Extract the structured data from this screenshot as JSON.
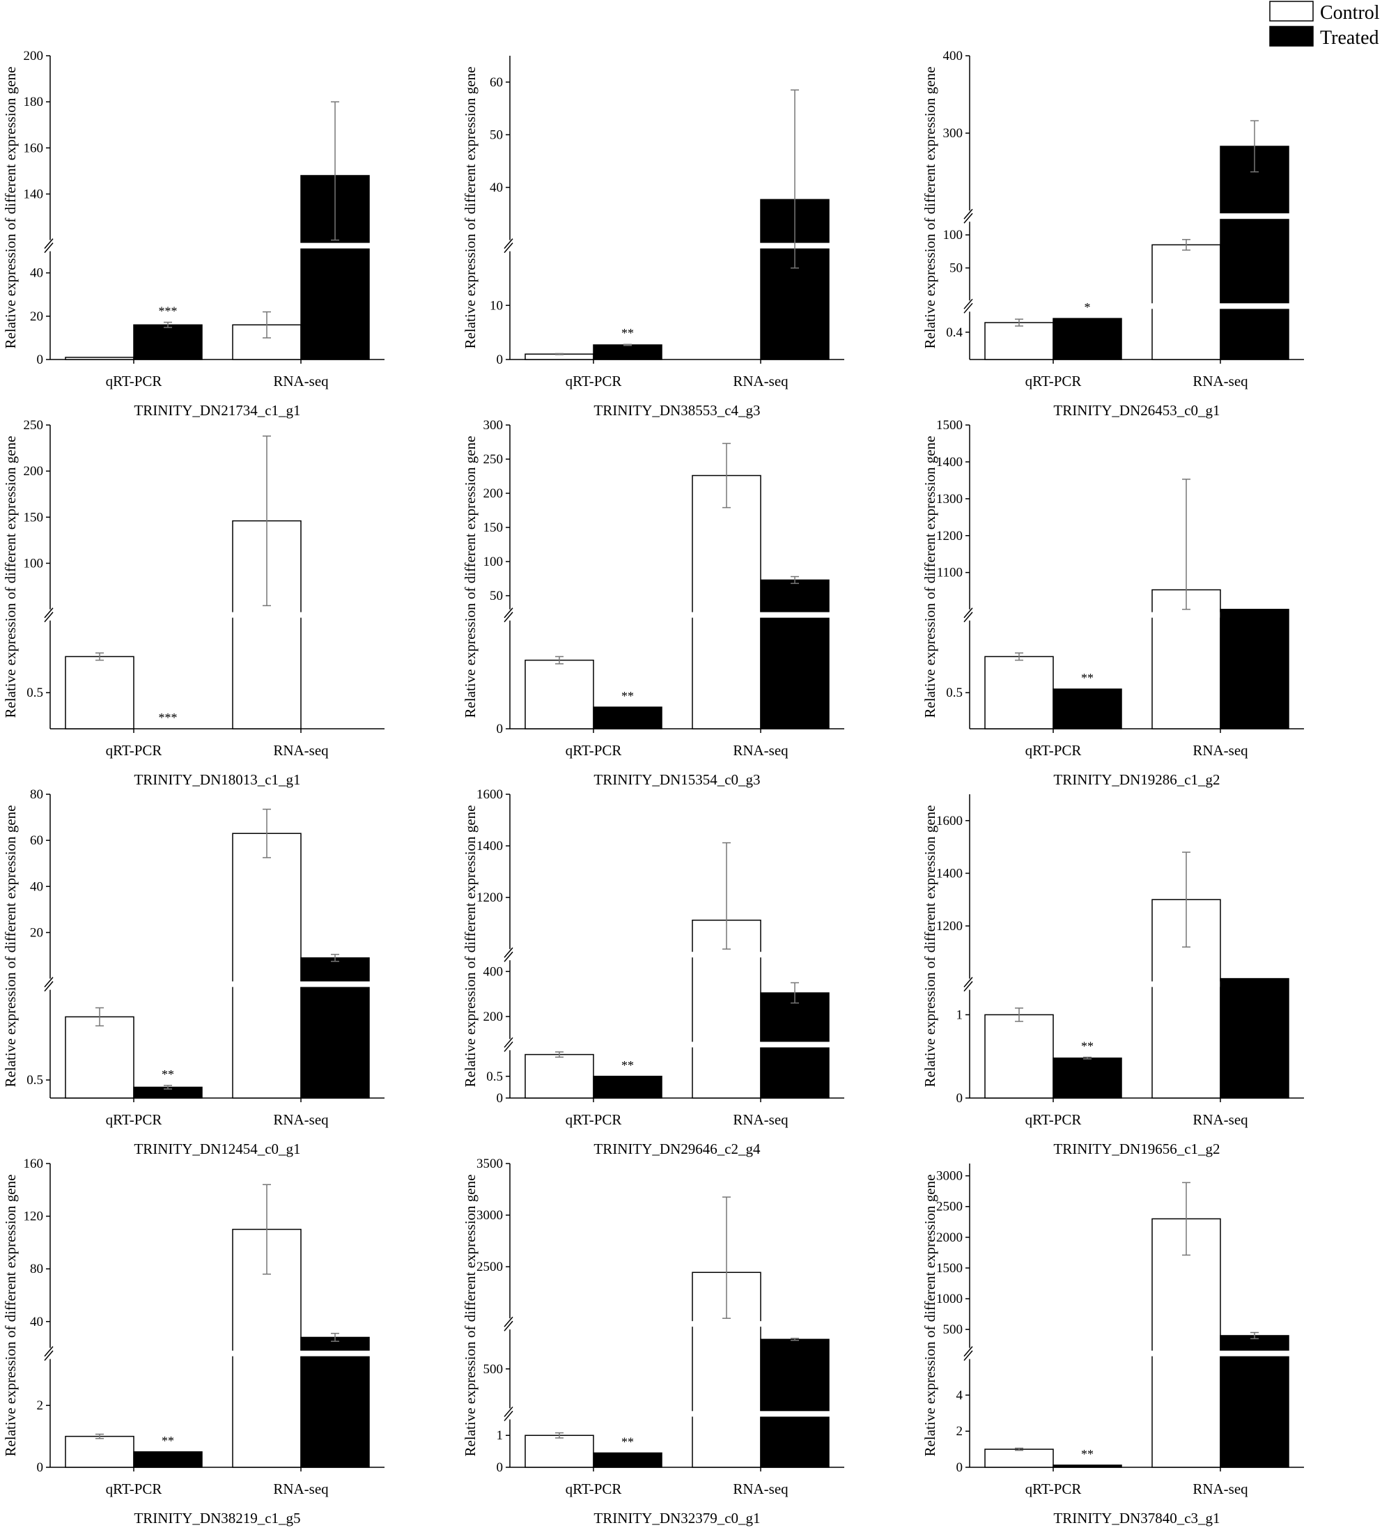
{
  "legend": {
    "control": "Control",
    "treated": "Treated"
  },
  "colors": {
    "control": "#ffffff",
    "treated": "#000000",
    "axis": "#000000",
    "error": "#777777"
  },
  "chart_data": [
    {
      "type": "bar",
      "title": "TRINITY_DN21734_c1_g1",
      "ylabel": "Relative expression of different expression gene",
      "categories": [
        "qRT-PCR",
        "RNA-seq"
      ],
      "segments": [
        {
          "lo": 0,
          "hi": 50,
          "ticks": [
            0,
            20,
            40
          ]
        },
        {
          "lo": 120,
          "hi": 200,
          "ticks": [
            140,
            160,
            180,
            200
          ]
        }
      ],
      "series": [
        {
          "name": "Control",
          "values": [
            1,
            16
          ],
          "errors": [
            0,
            6
          ]
        },
        {
          "name": "Treated",
          "values": [
            16,
            148
          ],
          "errors": [
            1.2,
            32
          ]
        }
      ],
      "significance": "***"
    },
    {
      "type": "bar",
      "title": "TRINITY_DN38553_c4_g3",
      "ylabel": "Relative expression of different expression gene",
      "categories": [
        "qRT-PCR",
        "RNA-seq"
      ],
      "segments": [
        {
          "lo": 0,
          "hi": 20,
          "ticks": [
            0,
            10
          ]
        },
        {
          "lo": 30,
          "hi": 65,
          "ticks": [
            40,
            50,
            60
          ]
        }
      ],
      "series": [
        {
          "name": "Control",
          "values": [
            1,
            0
          ],
          "errors": [
            0.1,
            0
          ]
        },
        {
          "name": "Treated",
          "values": [
            2.7,
            37.7
          ],
          "errors": [
            0.1,
            20.8
          ]
        }
      ],
      "significance": "**"
    },
    {
      "type": "bar",
      "title": "TRINITY_DN26453_c0_g1",
      "ylabel": "Relative expression of different expression gene",
      "categories": [
        "qRT-PCR",
        "RNA-seq"
      ],
      "segments": [
        {
          "lo": 0,
          "hi": 0.7,
          "ticks": [
            0.4
          ]
        },
        {
          "lo": 0.7,
          "hi": 120,
          "ticks": [
            50,
            100
          ]
        },
        {
          "lo": 200,
          "hi": 400,
          "ticks": [
            300,
            400
          ]
        }
      ],
      "series": [
        {
          "name": "Control",
          "values": [
            0.54,
            85
          ],
          "errors": [
            0.05,
            8
          ]
        },
        {
          "name": "Treated",
          "values": [
            0.6,
            283
          ],
          "errors": [
            0,
            33
          ]
        }
      ],
      "significance": "*"
    },
    {
      "type": "bar",
      "title": "TRINITY_DN18013_c1_g1",
      "ylabel": "Relative expression of different expression gene",
      "categories": [
        "qRT-PCR",
        "RNA-seq"
      ],
      "segments": [
        {
          "lo": 0.4,
          "hi": 0.7,
          "ticks": [
            0.5
          ]
        },
        {
          "lo": 50,
          "hi": 250,
          "ticks": [
            100,
            150,
            200,
            250
          ]
        }
      ],
      "series": [
        {
          "name": "Control",
          "values": [
            0.6,
            146
          ],
          "errors": [
            0.01,
            92
          ]
        },
        {
          "name": "Treated",
          "values": [
            0,
            0
          ],
          "errors": [
            0,
            0
          ]
        }
      ],
      "significance": "***"
    },
    {
      "type": "bar",
      "title": "TRINITY_DN15354_c0_g3",
      "ylabel": "Relative expression of different expression gene",
      "categories": [
        "qRT-PCR",
        "RNA-seq"
      ],
      "segments": [
        {
          "lo": 0,
          "hi": 3,
          "ticks": [
            0
          ]
        },
        {
          "lo": 30,
          "hi": 300,
          "ticks": [
            50,
            100,
            150,
            200,
            250,
            300
          ]
        }
      ],
      "series": [
        {
          "name": "Control",
          "values": [
            1.9,
            226
          ],
          "errors": [
            0.1,
            47
          ]
        },
        {
          "name": "Treated",
          "values": [
            0.6,
            73
          ],
          "errors": [
            0,
            5
          ]
        }
      ],
      "significance": "**"
    },
    {
      "type": "bar",
      "title": "TRINITY_DN19286_c1_g2",
      "ylabel": "Relative expression of different expression gene",
      "categories": [
        "qRT-PCR",
        "RNA-seq"
      ],
      "segments": [
        {
          "lo": 0.4,
          "hi": 0.7,
          "ticks": [
            0.5
          ]
        },
        {
          "lo": 1000,
          "hi": 1500,
          "ticks": [
            1100,
            1200,
            1300,
            1400,
            1500
          ]
        }
      ],
      "series": [
        {
          "name": "Control",
          "values": [
            0.6,
            1053
          ],
          "errors": [
            0.01,
            300
          ]
        },
        {
          "name": "Treated",
          "values": [
            0.51,
            1000
          ],
          "errors": [
            0,
            0
          ]
        }
      ],
      "significance": "**"
    },
    {
      "type": "bar",
      "title": "TRINITY_DN12454_c0_g1",
      "ylabel": "Relative expression of different expression gene",
      "categories": [
        "qRT-PCR",
        "RNA-seq"
      ],
      "segments": [
        {
          "lo": 0.4,
          "hi": 1.0,
          "ticks": [
            0.5
          ]
        },
        {
          "lo": 0,
          "hi": 80,
          "ticks": [
            20,
            40,
            60,
            80
          ]
        }
      ],
      "series": [
        {
          "name": "Control",
          "values": [
            0.85,
            63
          ],
          "errors": [
            0.05,
            10.5
          ]
        },
        {
          "name": "Treated",
          "values": [
            0.46,
            9
          ],
          "errors": [
            0.01,
            1.5
          ]
        }
      ],
      "significance": "**"
    },
    {
      "type": "bar",
      "title": "TRINITY_DN29646_c2_g4",
      "ylabel": "Relative expression of different expression gene",
      "categories": [
        "qRT-PCR",
        "RNA-seq"
      ],
      "segments": [
        {
          "lo": 0,
          "hi": 1.1,
          "ticks": [
            0,
            0.5
          ]
        },
        {
          "lo": 100,
          "hi": 450,
          "ticks": [
            200,
            400
          ]
        },
        {
          "lo": 1000,
          "hi": 1600,
          "ticks": [
            1200,
            1400,
            1600
          ]
        }
      ],
      "series": [
        {
          "name": "Control",
          "values": [
            1,
            1112
          ],
          "errors": [
            0.06,
            300
          ]
        },
        {
          "name": "Treated",
          "values": [
            0.5,
            305
          ],
          "errors": [
            0,
            45
          ]
        }
      ],
      "significance": "**"
    },
    {
      "type": "bar",
      "title": "TRINITY_DN19656_c1_g2",
      "ylabel": "Relative expression of different expression gene",
      "categories": [
        "qRT-PCR",
        "RNA-seq"
      ],
      "segments": [
        {
          "lo": 0,
          "hi": 1.3,
          "ticks": [
            0,
            1
          ]
        },
        {
          "lo": 1000,
          "hi": 1700,
          "ticks": [
            1200,
            1400,
            1600
          ]
        }
      ],
      "series": [
        {
          "name": "Control",
          "values": [
            1,
            1300
          ],
          "errors": [
            0.08,
            180
          ]
        },
        {
          "name": "Treated",
          "values": [
            0.48,
            1000
          ],
          "errors": [
            0.01,
            0
          ]
        }
      ],
      "significance": "**"
    },
    {
      "type": "bar",
      "title": "TRINITY_DN38219_c1_g5",
      "ylabel": "Relative expression of different expression gene",
      "categories": [
        "qRT-PCR",
        "RNA-seq"
      ],
      "segments": [
        {
          "lo": 0,
          "hi": 3.5,
          "ticks": [
            0,
            2
          ]
        },
        {
          "lo": 20,
          "hi": 160,
          "ticks": [
            40,
            80,
            120,
            160
          ]
        }
      ],
      "series": [
        {
          "name": "Control",
          "values": [
            1,
            110
          ],
          "errors": [
            0.07,
            34
          ]
        },
        {
          "name": "Treated",
          "values": [
            0.5,
            28
          ],
          "errors": [
            0,
            3
          ]
        }
      ],
      "significance": "**"
    },
    {
      "type": "bar",
      "title": "TRINITY_DN32379_c0_g1",
      "ylabel": "Relative expression of different expression gene",
      "categories": [
        "qRT-PCR",
        "RNA-seq"
      ],
      "segments": [
        {
          "lo": 0,
          "hi": 1.5,
          "ticks": [
            0,
            1
          ]
        },
        {
          "lo": 300,
          "hi": 700,
          "ticks": [
            500
          ]
        },
        {
          "lo": 2000,
          "hi": 3500,
          "ticks": [
            2500,
            3000,
            3500
          ]
        }
      ],
      "series": [
        {
          "name": "Control",
          "values": [
            1,
            2445
          ],
          "errors": [
            0.08,
            730
          ]
        },
        {
          "name": "Treated",
          "values": [
            0.45,
            650
          ],
          "errors": [
            0,
            5
          ]
        }
      ],
      "significance": "**"
    },
    {
      "type": "bar",
      "title": "TRINITY_DN37840_c3_g1",
      "ylabel": "Relative expression of different expression gene",
      "categories": [
        "qRT-PCR",
        "RNA-seq"
      ],
      "segments": [
        {
          "lo": 0,
          "hi": 6,
          "ticks": [
            0,
            2,
            4
          ]
        },
        {
          "lo": 200,
          "hi": 3200,
          "ticks": [
            500,
            1000,
            1500,
            2000,
            2500,
            3000
          ]
        }
      ],
      "series": [
        {
          "name": "Control",
          "values": [
            1,
            2300
          ],
          "errors": [
            0.06,
            590
          ]
        },
        {
          "name": "Treated",
          "values": [
            0.12,
            400
          ],
          "errors": [
            0,
            50
          ]
        }
      ],
      "significance": "**"
    }
  ]
}
